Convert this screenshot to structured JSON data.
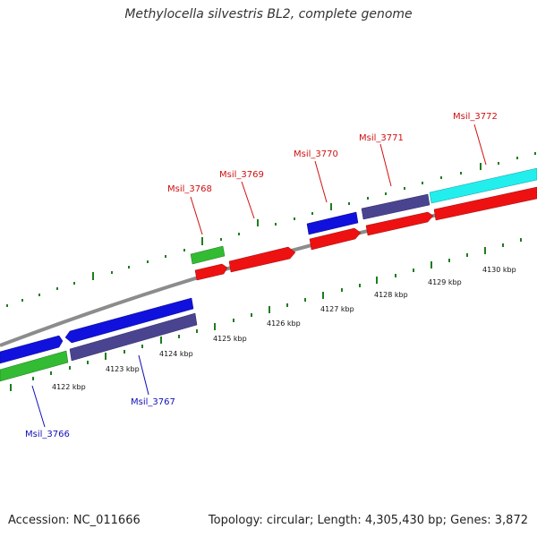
{
  "title": "Methylocella silvestris BL2, complete genome",
  "footer": {
    "accession": "Accession: NC_011666",
    "topology": "Topology: circular; Length: 4,305,430 bp; Genes: 3,872"
  },
  "colors": {
    "backbone": "#8c8c8c",
    "tick": "#1e7d1e",
    "label_top": "#d01010",
    "label_bottom": "#1010b8",
    "red": "#ee1111",
    "blue": "#1111dd",
    "purple": "#4a4490",
    "green": "#33bb33",
    "cyan": "#22eeee"
  },
  "scale_labels": [
    "4122 kbp",
    "4123 kbp",
    "4124 kbp",
    "4125 kbp",
    "4126 kbp",
    "4127 kbp",
    "4128 kbp",
    "4129 kbp",
    "4130 kbp"
  ],
  "gene_labels": [
    "Msil_3766",
    "Msil_3767",
    "Msil_3768",
    "Msil_3769",
    "Msil_3770",
    "Msil_3771",
    "Msil_3772"
  ]
}
